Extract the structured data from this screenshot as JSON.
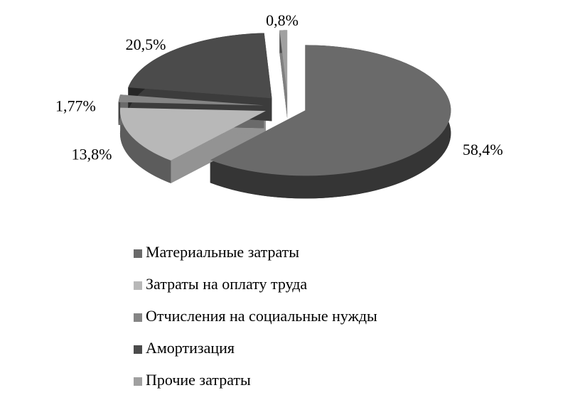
{
  "chart_data": {
    "type": "pie",
    "categories": [
      "Материальные затраты",
      "Затраты на оплату труда",
      "Отчисления на социальные нужды",
      "Амортизация",
      "Прочие затраты"
    ],
    "values": [
      58.4,
      13.8,
      1.77,
      20.5,
      0.8
    ],
    "value_labels": [
      "58,4%",
      "13,8%",
      "1,77%",
      "20,5%",
      "0,8%"
    ],
    "colors": [
      "#6a6a6a",
      "#b8b8b8",
      "#858585",
      "#4b4b4b",
      "#a0a0a0"
    ],
    "legend": "bottom"
  }
}
